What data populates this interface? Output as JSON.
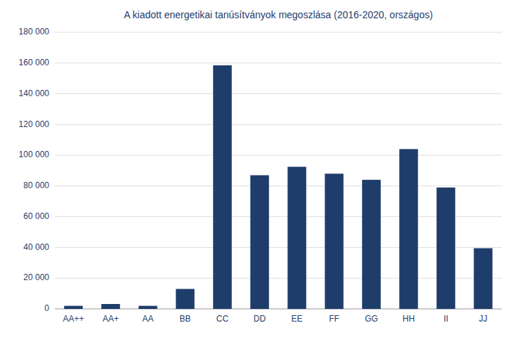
{
  "chart_data": {
    "type": "bar",
    "title": "A kiadott energetikai tanúsítványok megoszlása (2016-2020, országos)",
    "categories": [
      "AA++",
      "AA+",
      "AA",
      "BB",
      "CC",
      "DD",
      "EE",
      "FF",
      "GG",
      "HH",
      "II",
      "JJ"
    ],
    "values": [
      2000,
      3200,
      2000,
      13000,
      158500,
      87000,
      92500,
      88000,
      84000,
      104000,
      79000,
      39500
    ],
    "color": "#1F3D6B",
    "ylim": [
      0,
      180000
    ],
    "yticks": [
      0,
      {
        "value": 20000,
        "label": "20 000"
      },
      {
        "value": 40000,
        "label": "40 000"
      },
      {
        "value": 60000,
        "label": "60 000"
      },
      {
        "value": 80000,
        "label": "80 000"
      },
      {
        "value": 100000,
        "label": "100 000"
      },
      {
        "value": 120000,
        "label": "120 000"
      },
      {
        "value": 140000,
        "label": "140 000"
      },
      {
        "value": 160000,
        "label": "160 000"
      },
      {
        "value": 180000,
        "label": "180 000"
      }
    ],
    "grid": true
  }
}
